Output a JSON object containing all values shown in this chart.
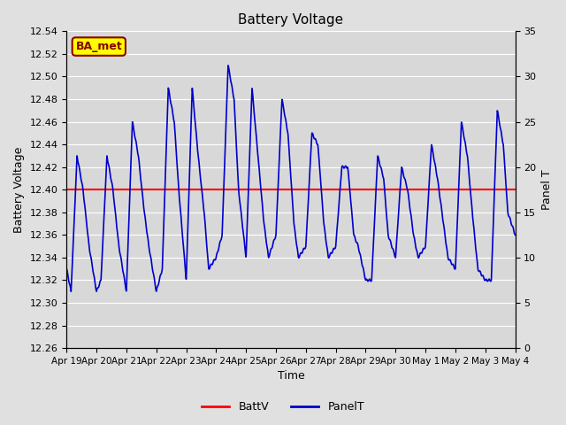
{
  "title": "Battery Voltage",
  "xlabel": "Time",
  "ylabel_left": "Battery Voltage",
  "ylabel_right": "Panel T",
  "ylim_left": [
    12.26,
    12.54
  ],
  "ylim_right": [
    0,
    35
  ],
  "yticks_left": [
    12.26,
    12.28,
    12.3,
    12.32,
    12.34,
    12.36,
    12.38,
    12.4,
    12.42,
    12.44,
    12.46,
    12.48,
    12.5,
    12.52,
    12.54
  ],
  "yticks_right": [
    0,
    5,
    10,
    15,
    20,
    25,
    30,
    35
  ],
  "x_tick_labels": [
    "Apr 19",
    "Apr 20",
    "Apr 21",
    "Apr 22",
    "Apr 23",
    "Apr 24",
    "Apr 25",
    "Apr 26",
    "Apr 27",
    "Apr 28",
    "Apr 29",
    "Apr 30",
    "May 1",
    "May 2",
    "May 3",
    "May 4"
  ],
  "batt_v": 12.4,
  "bg_color": "#e0e0e0",
  "plot_bg_color": "#d8d8d8",
  "grid_color": "#ffffff",
  "line_blue": "#0000cc",
  "line_red": "#ff0000",
  "annotation_text": "BA_met",
  "annotation_bg": "#ffff00",
  "annotation_border": "#8b0000",
  "key_x": [
    0,
    0.15,
    0.35,
    0.55,
    0.75,
    1.0,
    1.15,
    1.35,
    1.55,
    1.75,
    2.0,
    2.2,
    2.4,
    2.6,
    2.75,
    3.0,
    3.2,
    3.4,
    3.6,
    3.75,
    4.0,
    4.2,
    4.4,
    4.6,
    4.75,
    5.0,
    5.2,
    5.4,
    5.6,
    5.75,
    6.0,
    6.2,
    6.4,
    6.6,
    6.75,
    7.0,
    7.2,
    7.4,
    7.6,
    7.75,
    8.0,
    8.2,
    8.4,
    8.6,
    8.75,
    9.0,
    9.2,
    9.4,
    9.6,
    9.75,
    10.0,
    10.2,
    10.4,
    10.6,
    10.75,
    11.0,
    11.2,
    11.4,
    11.6,
    11.75,
    12.0,
    12.2,
    12.4,
    12.6,
    12.75,
    13.0,
    13.2,
    13.4,
    13.6,
    13.75,
    14.0,
    14.2,
    14.4,
    14.6,
    14.75,
    15.0
  ],
  "key_y": [
    12.33,
    12.31,
    12.43,
    12.4,
    12.35,
    12.31,
    12.32,
    12.43,
    12.4,
    12.35,
    12.31,
    12.46,
    12.43,
    12.38,
    12.35,
    12.31,
    12.33,
    12.49,
    12.46,
    12.4,
    12.32,
    12.49,
    12.43,
    12.38,
    12.33,
    12.34,
    12.36,
    12.51,
    12.48,
    12.4,
    12.34,
    12.49,
    12.43,
    12.37,
    12.34,
    12.36,
    12.48,
    12.45,
    12.37,
    12.34,
    12.35,
    12.45,
    12.44,
    12.37,
    12.34,
    12.35,
    12.42,
    12.42,
    12.36,
    12.35,
    12.32,
    12.32,
    12.43,
    12.41,
    12.36,
    12.34,
    12.42,
    12.4,
    12.36,
    12.34,
    12.35,
    12.44,
    12.41,
    12.37,
    12.34,
    12.33,
    12.46,
    12.43,
    12.37,
    12.33,
    12.32,
    12.32,
    12.47,
    12.44,
    12.38,
    12.36
  ]
}
